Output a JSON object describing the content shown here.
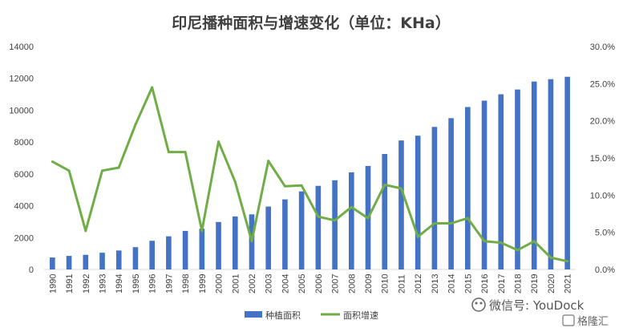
{
  "chart_data": {
    "type": "bar+line",
    "title": "印尼播种面积与增速变化（单位：KHa）",
    "categories": [
      "1990",
      "1991",
      "1992",
      "1993",
      "1994",
      "1995",
      "1996",
      "1997",
      "1998",
      "1999",
      "2000",
      "2001",
      "2002",
      "2003",
      "2004",
      "2005",
      "2006",
      "2007",
      "2008",
      "2009",
      "2010",
      "2011",
      "2012",
      "2013",
      "2014",
      "2015",
      "2016",
      "2017",
      "2018",
      "2019",
      "2020",
      "2021"
    ],
    "series": [
      {
        "name": "种植面积",
        "type": "bar",
        "axis": "left",
        "color": "#4472C4",
        "values": [
          750,
          850,
          920,
          1050,
          1190,
          1400,
          1800,
          2080,
          2420,
          2560,
          2980,
          3330,
          3460,
          3950,
          4400,
          4900,
          5250,
          5600,
          6100,
          6500,
          7250,
          8100,
          8400,
          8950,
          9500,
          10200,
          10600,
          11000,
          11300,
          11800,
          11950,
          12100
        ]
      },
      {
        "name": "面积增速",
        "type": "line",
        "axis": "right",
        "color": "#70AD47",
        "values": [
          0.145,
          0.133,
          0.052,
          0.133,
          0.137,
          0.195,
          0.245,
          0.158,
          0.158,
          0.052,
          0.172,
          0.118,
          0.038,
          0.146,
          0.112,
          0.113,
          0.071,
          0.066,
          0.084,
          0.069,
          0.114,
          0.109,
          0.044,
          0.062,
          0.062,
          0.069,
          0.038,
          0.036,
          0.026,
          0.038,
          0.016,
          0.011
        ]
      }
    ],
    "y_left": {
      "min": 0,
      "max": 14000,
      "ticks": [
        "0",
        "2000",
        "4000",
        "6000",
        "8000",
        "10000",
        "12000",
        "14000"
      ]
    },
    "y_right": {
      "min": 0,
      "max": 0.3,
      "ticks": [
        "0.0%",
        "5.0%",
        "10.0%",
        "15.0%",
        "20.0%",
        "25.0%",
        "30.0%"
      ]
    },
    "grid": false,
    "legend_position": "bottom"
  },
  "watermark": {
    "text": "微信号: YouDock",
    "brand": "格隆汇"
  }
}
